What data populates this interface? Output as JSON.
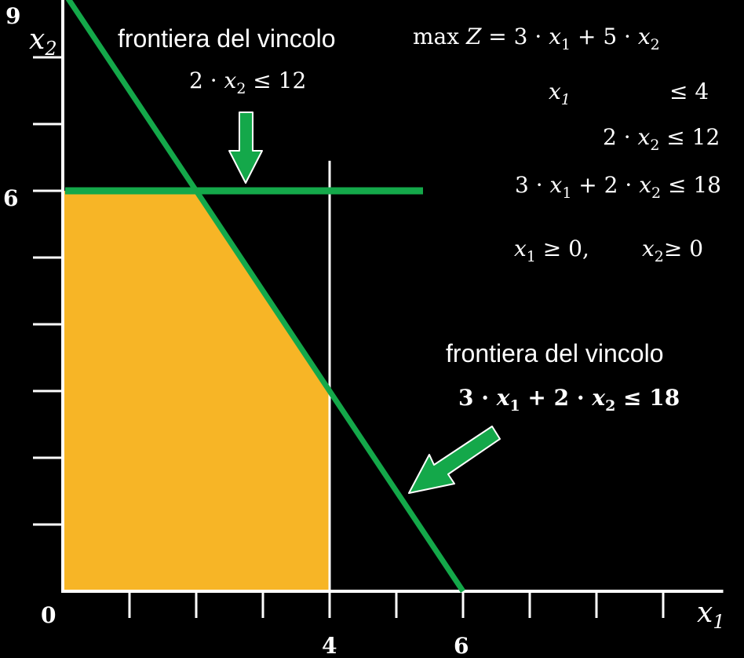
{
  "axes": {
    "x_label_var": "x",
    "x_label_sub": "1",
    "y_label_var": "x",
    "y_label_sub": "2",
    "origin_label": "0",
    "x_tick_labels": [
      "4",
      "6"
    ],
    "y_tick_labels": [
      "9",
      "6"
    ]
  },
  "callout_top": {
    "title": "frontiera del vincolo",
    "formula": {
      "coef": "2 · ",
      "var": "x",
      "sub": "2",
      "rhs": " ≤ 12"
    }
  },
  "callout_bottom": {
    "title": "frontiera del vincolo",
    "formula": {
      "a": "3 · ",
      "v1": "x",
      "s1": "1",
      "mid": " + 2 · ",
      "v2": "x",
      "s2": "2",
      "rhs": " ≤ 18"
    }
  },
  "model": {
    "objective": {
      "max": "max ",
      "z": "Z",
      "eq": " = 3 · ",
      "v1": "x",
      "s1": "1",
      "mid": " + 5 · ",
      "v2": "x",
      "s2": "2"
    },
    "c1": {
      "var": "x",
      "sub": "1",
      "rhs": "≤ 4"
    },
    "c2": {
      "coef": "2 · ",
      "var": "x",
      "sub": "2",
      "rhs": " ≤ 12"
    },
    "c3": {
      "a": "3 · ",
      "v1": "x",
      "s1": "1",
      "mid": " + 2 · ",
      "v2": "x",
      "s2": "2",
      "rhs": " ≤ 18"
    },
    "nonneg": {
      "v1": "x",
      "s1": "1",
      "r1": " ≥ 0,",
      "v2": "x",
      "s2": "2",
      "r2": "≥ 0"
    }
  },
  "colors": {
    "background": "#000000",
    "feasible_region": "#F7B526",
    "constraint_line": "#14A84A",
    "arrow_fill": "#14A84A",
    "axis": "#FFFFFF"
  },
  "chart_data": {
    "type": "line",
    "xlim": [
      0,
      9.9
    ],
    "ylim": [
      0,
      9
    ],
    "constraints": [
      {
        "expr": "x1 <= 4",
        "boundary": {
          "x1": 4
        }
      },
      {
        "expr": "2*x2 <= 12",
        "boundary": {
          "x2": 6
        }
      },
      {
        "expr": "3*x1 + 2*x2 <= 18",
        "boundary_points": [
          [
            0,
            9
          ],
          [
            6,
            0
          ]
        ]
      }
    ],
    "feasible_region_vertices": [
      [
        0,
        0
      ],
      [
        0,
        6
      ],
      [
        2,
        6
      ],
      [
        4,
        3
      ],
      [
        4,
        0
      ]
    ],
    "objective": {
      "c1": 3,
      "c2": 5
    }
  }
}
